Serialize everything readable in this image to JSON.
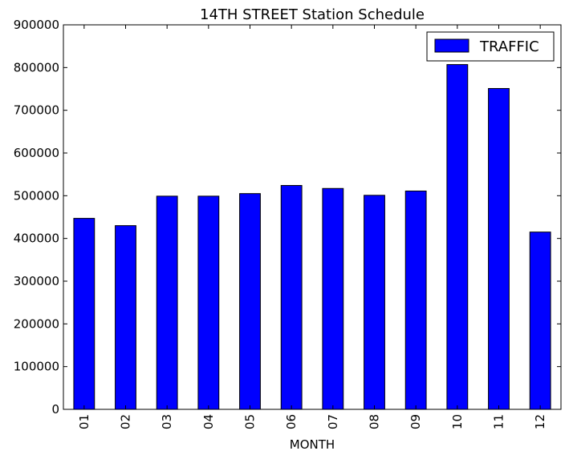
{
  "chart_data": {
    "type": "bar",
    "title": "14TH STREET Station Schedule",
    "xlabel": "MONTH",
    "ylabel": "",
    "categories": [
      "01",
      "02",
      "03",
      "04",
      "05",
      "06",
      "07",
      "08",
      "09",
      "10",
      "11",
      "12"
    ],
    "series": [
      {
        "name": "TRAFFIC",
        "values": [
          447000,
          430000,
          499000,
          499000,
          505000,
          524000,
          517000,
          501000,
          511000,
          807000,
          751000,
          415000
        ],
        "color": "#0000ff"
      }
    ],
    "ylim": [
      0,
      900000
    ],
    "yticks": [
      0,
      100000,
      200000,
      300000,
      400000,
      500000,
      600000,
      700000,
      800000,
      900000
    ],
    "grid": false,
    "legend": "top-right"
  }
}
